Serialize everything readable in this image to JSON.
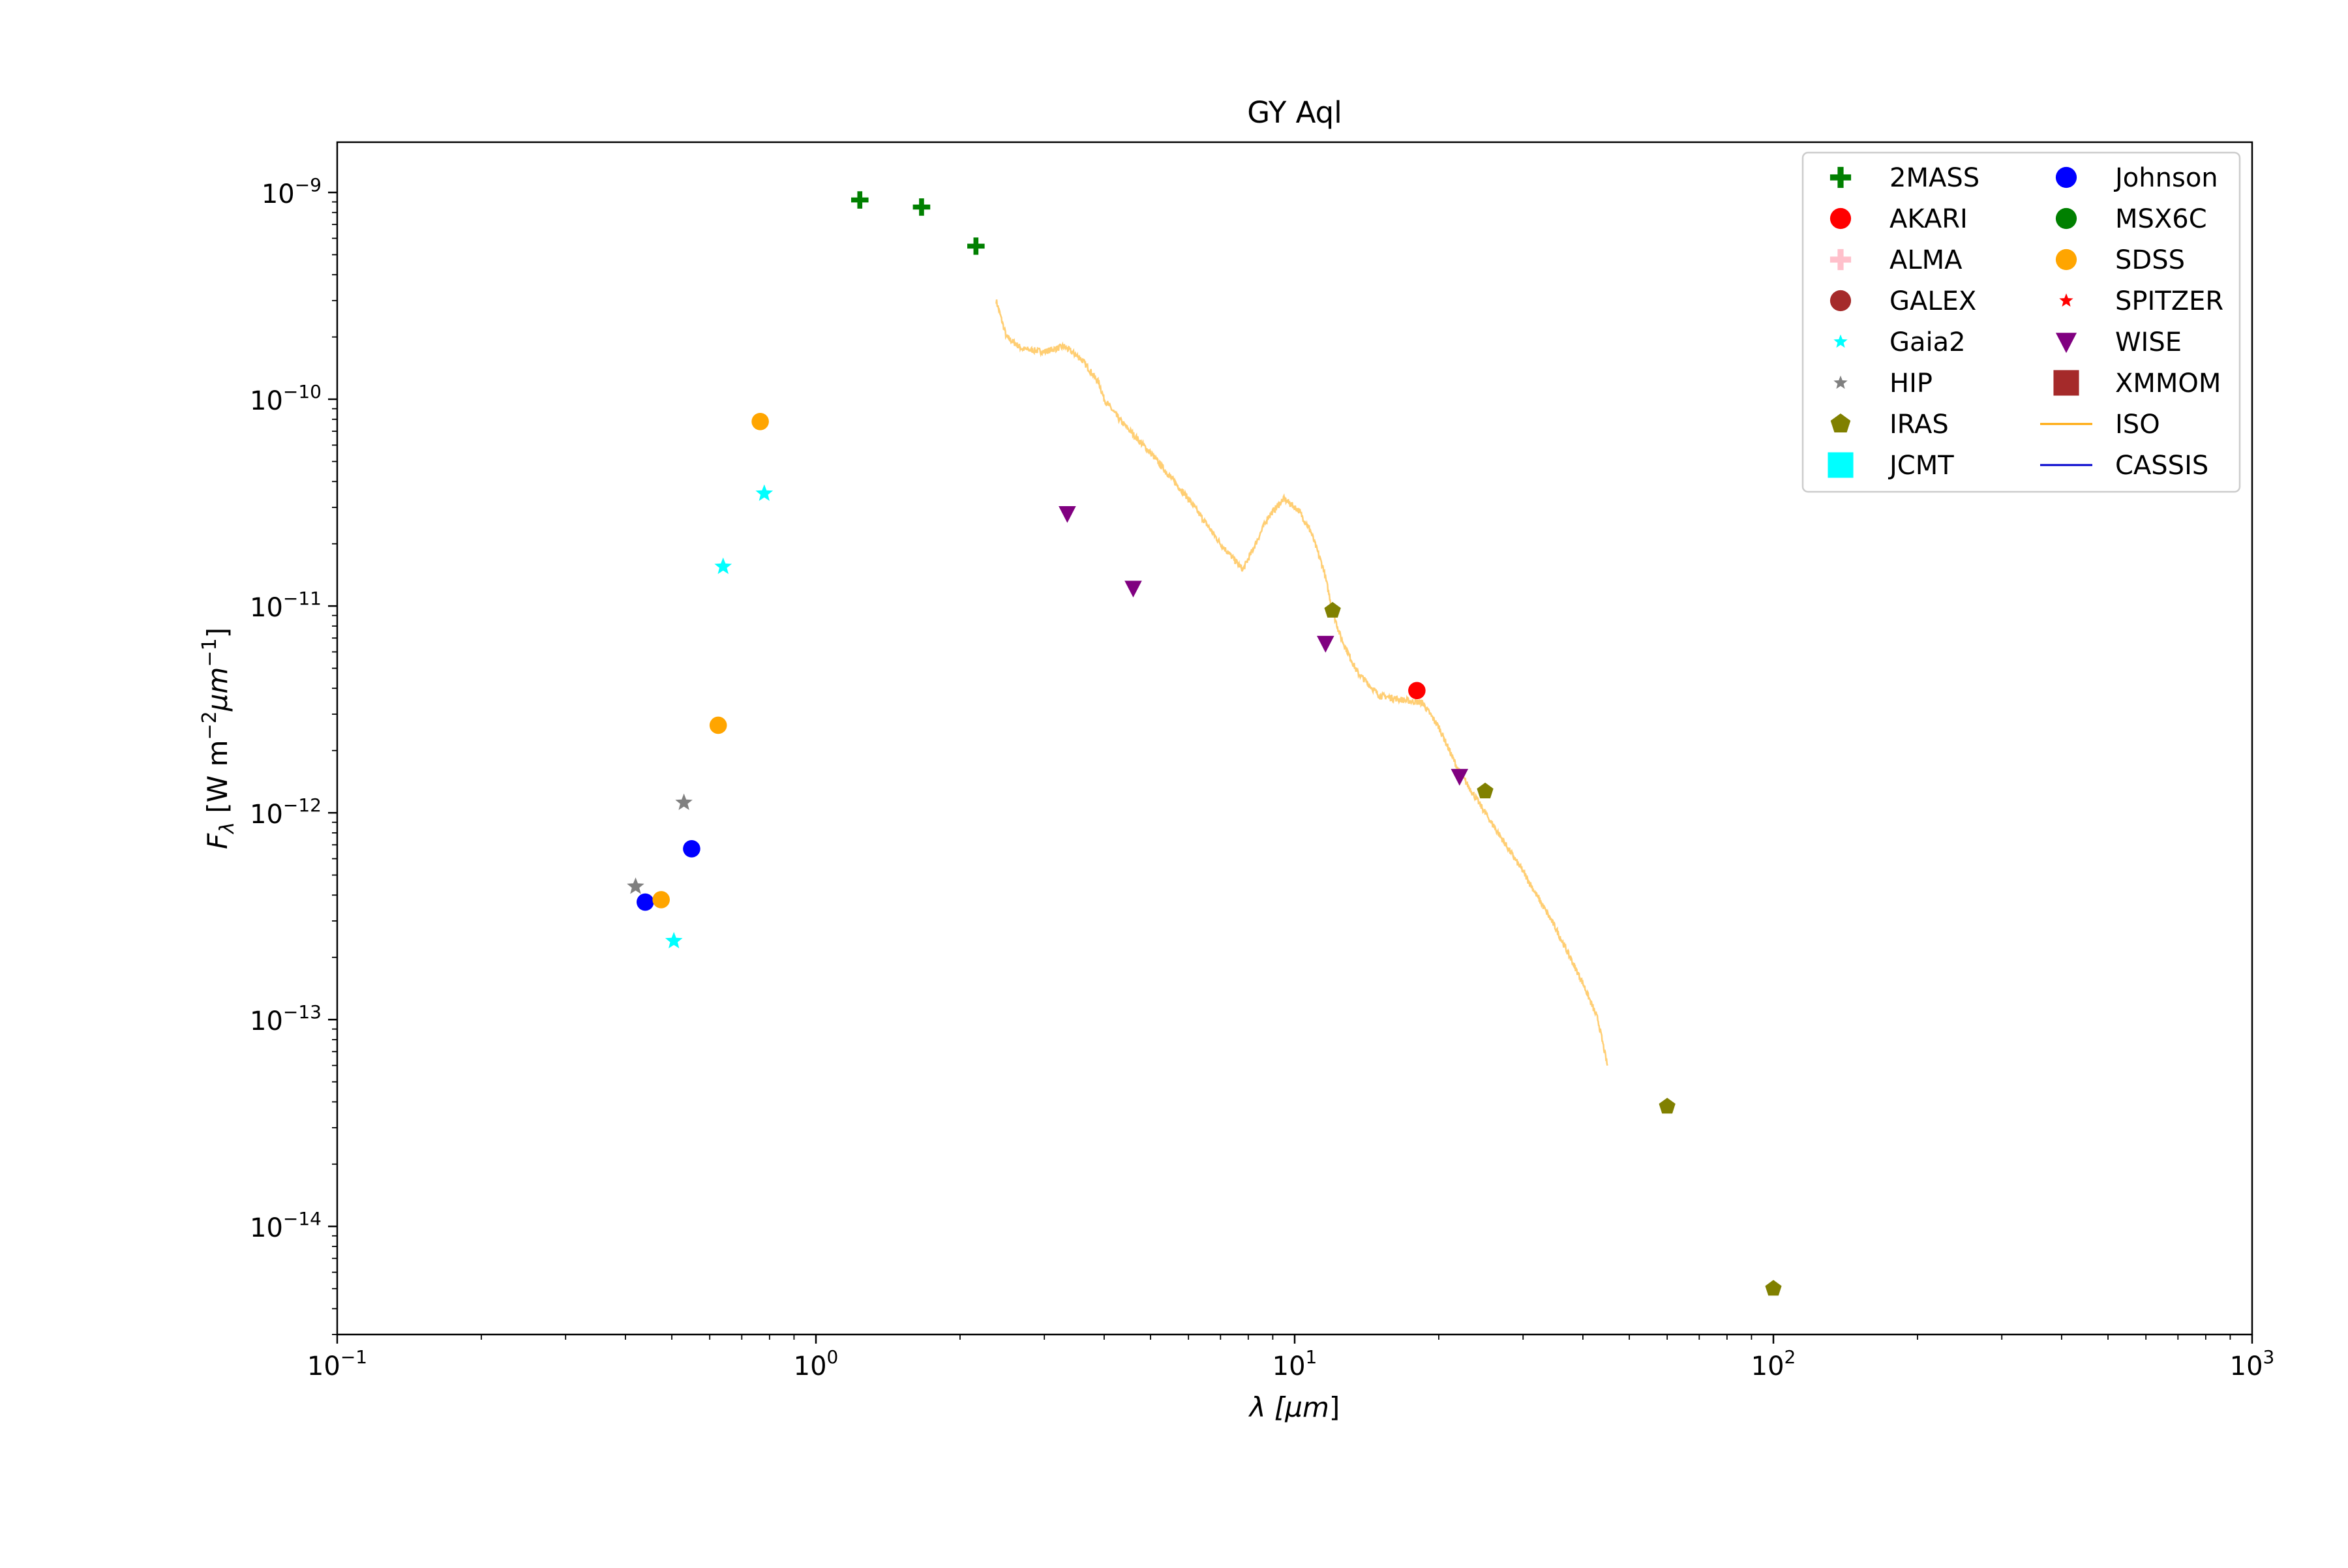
{
  "chart_data": {
    "type": "scatter",
    "title": "GY Aql",
    "xlabel": {
      "base": "λ [",
      "mu": "μm",
      "tail": "]"
    },
    "ylabel": {
      "F": "F",
      "sub": "λ",
      "mid": " [W m",
      "exp1": "−2",
      "mu": "μm",
      "exp2": "−1",
      "tail": "]"
    },
    "xscale": "log",
    "yscale": "log",
    "xlim": [
      0.1,
      1000
    ],
    "ylim": [
      3e-15,
      1.75e-09
    ],
    "grid": false,
    "legend_position": "upper-right",
    "x_ticks": [
      {
        "value": 0.1,
        "base": "10",
        "exp": "−1"
      },
      {
        "value": 1,
        "base": "10",
        "exp": "0"
      },
      {
        "value": 10,
        "base": "10",
        "exp": "1"
      },
      {
        "value": 100,
        "base": "10",
        "exp": "2"
      },
      {
        "value": 1000,
        "base": "10",
        "exp": "3"
      }
    ],
    "y_ticks": [
      {
        "value": 1e-14,
        "base": "10",
        "exp": "−14"
      },
      {
        "value": 1e-13,
        "base": "10",
        "exp": "−13"
      },
      {
        "value": 1e-12,
        "base": "10",
        "exp": "−12"
      },
      {
        "value": 1e-11,
        "base": "10",
        "exp": "−11"
      },
      {
        "value": 1e-10,
        "base": "10",
        "exp": "−10"
      },
      {
        "value": 1e-09,
        "base": "10",
        "exp": "−9"
      }
    ],
    "series": [
      {
        "name": "2MASS",
        "marker": "plus",
        "color": "#008000",
        "x": [
          1.235,
          1.662,
          2.159
        ],
        "y": [
          9.2e-10,
          8.5e-10,
          5.5e-10
        ]
      },
      {
        "name": "AKARI",
        "marker": "circle",
        "color": "#ff0000",
        "x": [
          18.0
        ],
        "y": [
          3.9e-12
        ]
      },
      {
        "name": "ALMA",
        "marker": "plus",
        "color": "#ffc0cb",
        "x": [],
        "y": []
      },
      {
        "name": "GALEX",
        "marker": "circle",
        "color": "#a52a2a",
        "x": [],
        "y": []
      },
      {
        "name": "Gaia2",
        "marker": "star",
        "color": "#00ffff",
        "x": [
          0.505,
          0.64,
          0.78
        ],
        "y": [
          2.4e-13,
          1.55e-11,
          3.5e-11
        ]
      },
      {
        "name": "HIP",
        "marker": "star",
        "color": "#808080",
        "x": [
          0.42,
          0.53
        ],
        "y": [
          4.4e-13,
          1.12e-12
        ]
      },
      {
        "name": "IRAS",
        "marker": "pentagon",
        "color": "#808000",
        "x": [
          12.0,
          25.0,
          60.0,
          100.0
        ],
        "y": [
          9.5e-12,
          1.27e-12,
          3.8e-14,
          5e-15
        ]
      },
      {
        "name": "JCMT",
        "marker": "square",
        "color": "#00ffff",
        "x": [],
        "y": []
      },
      {
        "name": "Johnson",
        "marker": "circle",
        "color": "#0000ff",
        "x": [
          0.44,
          0.55
        ],
        "y": [
          3.7e-13,
          6.7e-13
        ]
      },
      {
        "name": "MSX6C",
        "marker": "circle",
        "color": "#008000",
        "x": [],
        "y": []
      },
      {
        "name": "SDSS",
        "marker": "circle",
        "color": "#ffa500",
        "x": [
          0.475,
          0.625,
          0.765
        ],
        "y": [
          3.8e-13,
          2.65e-12,
          7.8e-11
        ]
      },
      {
        "name": "SPITZER",
        "marker": "star",
        "color": "#ff0000",
        "x": [],
        "y": []
      },
      {
        "name": "WISE",
        "marker": "triangle-down",
        "color": "#800080",
        "x": [
          3.35,
          4.6,
          11.6,
          22.1
        ],
        "y": [
          2.8e-11,
          1.22e-11,
          6.6e-12,
          1.5e-12
        ]
      },
      {
        "name": "XMMOM",
        "marker": "square",
        "color": "#a52a2a",
        "x": [],
        "y": []
      },
      {
        "name": "ISO",
        "marker": "line",
        "color": "#ffa500",
        "x": [
          2.38,
          2.5,
          2.7,
          3.0,
          3.3,
          3.6,
          3.9,
          4.0,
          4.3,
          5.0,
          6.0,
          7.0,
          7.8,
          8.2,
          8.8,
          9.5,
          10.2,
          10.8,
          11.5,
          12.0,
          12.5,
          13.5,
          15.0,
          17.0,
          18.5,
          20.0,
          22.0,
          25.0,
          30.0,
          35.0,
          40.0,
          43.0,
          45.0
        ],
        "y": [
          3e-10,
          2e-10,
          1.75e-10,
          1.7e-10,
          1.8e-10,
          1.55e-10,
          1.2e-10,
          1e-10,
          8e-11,
          5.5e-11,
          3.3e-11,
          2e-11,
          1.5e-11,
          1.9e-11,
          2.7e-11,
          3.3e-11,
          2.9e-11,
          2.3e-11,
          1.5e-11,
          9.5e-12,
          7e-12,
          4.8e-12,
          3.7e-12,
          3.5e-12,
          3.4e-12,
          2.6e-12,
          1.6e-12,
          1e-12,
          5.2e-13,
          2.8e-13,
          1.5e-13,
          1e-13,
          6e-14
        ]
      },
      {
        "name": "CASSIS",
        "marker": "line",
        "color": "#0000cd",
        "x": [],
        "y": []
      }
    ]
  }
}
